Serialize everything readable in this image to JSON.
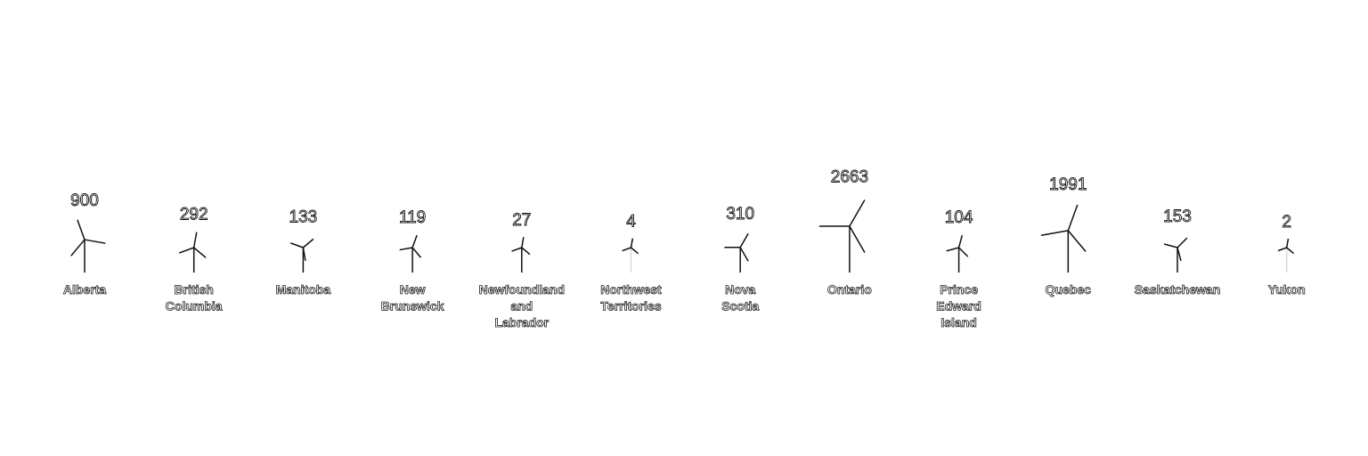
{
  "chart_data": {
    "type": "pictogram",
    "title": "",
    "colors": {
      "stroke": "#111111",
      "background": "#ffffff"
    },
    "icon": "wind-turbine-icon",
    "categories": [
      "Alberta",
      "British Columbia",
      "Manitoba",
      "New Brunswick",
      "Newfoundland and Labrador",
      "Northwest Territories",
      "Nova Scotia",
      "Ontario",
      "Prince Edward Island",
      "Quebec",
      "Saskatchewan",
      "Yukon"
    ],
    "values": [
      900,
      292,
      133,
      119,
      27,
      4,
      310,
      2663,
      104,
      1991,
      153,
      2
    ],
    "label_text": [
      "900",
      "292",
      "133",
      "119",
      "27",
      "4",
      "310",
      "2663",
      "104",
      "1991",
      "153",
      "2"
    ],
    "name_lines": [
      [
        "Alberta"
      ],
      [
        "British",
        "Columbia"
      ],
      [
        "Manitoba"
      ],
      [
        "New",
        "Brunswick"
      ],
      [
        "Newfoundland",
        "and",
        "Labrador"
      ],
      [
        "Northwest",
        "Territories"
      ],
      [
        "Nova",
        "Scotia"
      ],
      [
        "Ontario"
      ],
      [
        "Prince",
        "Edward",
        "Island"
      ],
      [
        "Quebec"
      ],
      [
        "Saskatchewan"
      ],
      [
        "Yukon"
      ]
    ],
    "rotation_deg": [
      100,
      10,
      50,
      20,
      10,
      10,
      30,
      30,
      15,
      20,
      45,
      10
    ]
  }
}
